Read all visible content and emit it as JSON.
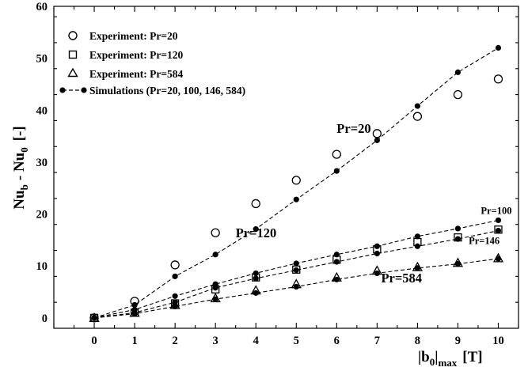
{
  "chart_data": {
    "type": "scatter",
    "title": "",
    "xlabel": {
      "main": "|b",
      "sub": "0",
      "close": "|",
      "subscript2": "max",
      "unit": "[T]"
    },
    "ylabel": {
      "a": "Nu",
      "a_sub": "b",
      "minus": "- Nu",
      "b_sub": "0",
      "unit": "[-]"
    },
    "xlim": [
      -1,
      10.5
    ],
    "ylim": [
      -2,
      60
    ],
    "xticks": [
      0,
      1,
      2,
      3,
      4,
      5,
      6,
      7,
      8,
      9,
      10
    ],
    "yticks": [
      0,
      10,
      20,
      30,
      40,
      50,
      60
    ],
    "grid": false,
    "legend_position": "top-left",
    "legend": [
      {
        "label": "Experiment: Pr=20",
        "marker": "circle-open"
      },
      {
        "label": "Experiment: Pr=120",
        "marker": "square-open"
      },
      {
        "label": "Experiment: Pr=584",
        "marker": "triangle-open"
      },
      {
        "label": "Simulations (Pr=20, 100, 146, 584)",
        "marker": "circle-filled-dashed"
      }
    ],
    "experiments": [
      {
        "name": "Experiment: Pr=20",
        "marker": "circle-open",
        "x": [
          0,
          1,
          2,
          3,
          4,
          5,
          6,
          7,
          8,
          9,
          10
        ],
        "y": [
          0,
          3.2,
          10.2,
          16.4,
          22.0,
          26.5,
          31.5,
          35.5,
          38.8,
          43.0,
          46.0
        ]
      },
      {
        "name": "Experiment: Pr=120",
        "marker": "square-open",
        "x": [
          0,
          1,
          2,
          3,
          4,
          5,
          6,
          7,
          8,
          9,
          10
        ],
        "y": [
          0,
          1.0,
          2.8,
          5.5,
          7.8,
          9.3,
          11.2,
          13.2,
          14.6,
          15.5,
          17.0
        ]
      },
      {
        "name": "Experiment: Pr=584",
        "marker": "triangle-open",
        "x": [
          0,
          1,
          2,
          3,
          4,
          5,
          6,
          7,
          8,
          9,
          10
        ],
        "y": [
          0,
          1.0,
          2.5,
          3.8,
          5.3,
          6.5,
          7.8,
          9.1,
          9.8,
          10.6,
          11.5
        ]
      }
    ],
    "simulations": [
      {
        "name": "Pr=20",
        "x": [
          0,
          1,
          2,
          3,
          4,
          5,
          6,
          7,
          8,
          9,
          10
        ],
        "y": [
          0,
          2.5,
          8.0,
          12.2,
          17.1,
          22.8,
          28.3,
          34.2,
          40.8,
          47.3,
          52.0
        ]
      },
      {
        "name": "Pr=100",
        "x": [
          0,
          1,
          2,
          3,
          4,
          5,
          6,
          7,
          8,
          9,
          10
        ],
        "y": [
          0,
          1.6,
          4.2,
          6.5,
          8.6,
          10.5,
          12.2,
          13.8,
          15.7,
          17.2,
          18.8
        ]
      },
      {
        "name": "Pr=146",
        "x": [
          0,
          1,
          2,
          3,
          4,
          5,
          6,
          7,
          8,
          9,
          10
        ],
        "y": [
          0,
          1.0,
          3.0,
          5.8,
          7.6,
          9.2,
          10.8,
          12.4,
          13.8,
          15.2,
          16.8
        ]
      },
      {
        "name": "Pr=584",
        "x": [
          0,
          1,
          2,
          3,
          4,
          5,
          6,
          7,
          8,
          9,
          10
        ],
        "y": [
          0,
          0.8,
          2.2,
          3.6,
          4.8,
          6.0,
          7.4,
          8.6,
          9.6,
          10.4,
          11.4
        ]
      }
    ],
    "annotations": [
      {
        "text": "Pr=20",
        "x": 6.0,
        "y": 35.6,
        "size": "large"
      },
      {
        "text": "Pr=120",
        "x": 3.5,
        "y": 15.5,
        "size": "large"
      },
      {
        "text": "Pr=584",
        "x": 7.1,
        "y": 6.8,
        "size": "large"
      },
      {
        "text": "Pr=100",
        "x": 9.95,
        "y": 20.0,
        "size": "small"
      },
      {
        "text": "Pr=146",
        "x": 9.65,
        "y": 14.2,
        "size": "small"
      }
    ]
  }
}
